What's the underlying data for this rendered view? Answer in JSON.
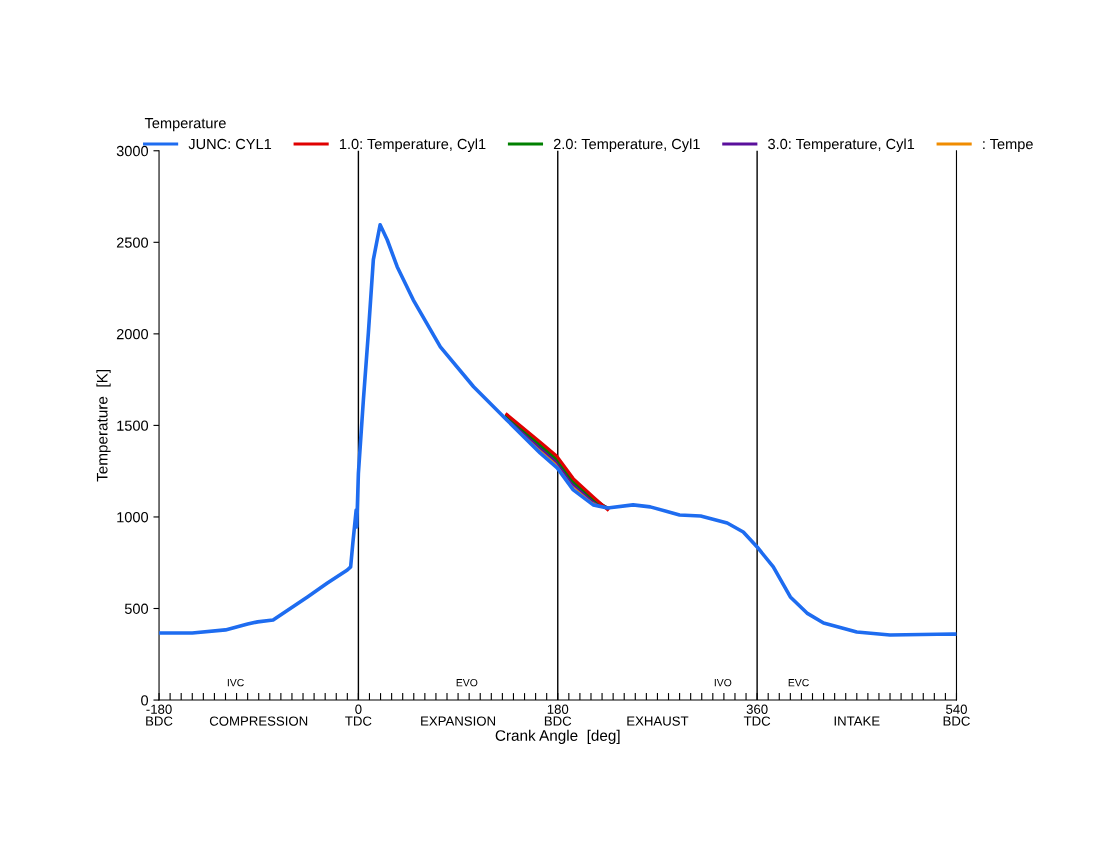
{
  "chart_data": {
    "type": "line",
    "xlabel": "Crank Angle  [deg]",
    "ylabel": "Temperature  [K]",
    "legend_title": "Temperature",
    "x": [
      -180,
      -150,
      -120,
      -100,
      -91,
      -77,
      -46,
      -28,
      -10,
      -7,
      -5,
      -2,
      -1.5,
      0,
      4.5,
      9,
      13.5,
      19.6,
      26,
      35,
      49.5,
      74,
      104,
      134,
      164,
      179.5,
      194,
      212,
      225,
      248,
      263.5,
      290,
      309,
      333,
      347.5,
      360,
      374.6,
      390,
      405,
      420,
      450,
      480,
      537,
      540
    ],
    "series": [
      {
        "name": "JUNC: CYL1",
        "color": "#1e6cf0",
        "values": [
          366,
          366,
          383,
          415,
          427,
          437,
          563,
          639,
          710,
          727,
          858,
          1038,
          945,
          1240,
          1640,
          2005,
          2405,
          2596,
          2514,
          2367,
          2186,
          1929,
          1711,
          1530,
          1350,
          1268,
          1148,
          1066,
          1049,
          1066,
          1055,
          1011,
          1005,
          967,
          918,
          836,
          727,
          563,
          475,
          421,
          372,
          355,
          361,
          360
        ]
      },
      {
        "name": "1.0: Temperature, Cyl1",
        "color": "#e00000",
        "values": [
          null,
          null,
          null,
          null,
          null,
          null,
          null,
          null,
          null,
          null,
          null,
          null,
          null,
          null,
          null,
          null,
          null,
          null,
          null,
          null,
          null,
          null,
          null,
          1560,
          1410,
          1330,
          1210,
          1110,
          1040,
          null,
          null,
          null,
          null,
          null,
          null,
          null,
          null,
          null,
          null,
          null,
          null,
          null,
          null,
          null
        ]
      },
      {
        "name": "2.0: Temperature, Cyl1",
        "color": "#008000",
        "values": [
          null,
          null,
          null,
          null,
          null,
          null,
          null,
          null,
          null,
          null,
          null,
          null,
          null,
          null,
          null,
          null,
          null,
          null,
          null,
          null,
          null,
          null,
          null,
          1555,
          1395,
          1315,
          1195,
          1100,
          1045,
          null,
          null,
          null,
          null,
          null,
          null,
          null,
          null,
          null,
          null,
          null,
          null,
          null,
          null,
          null
        ]
      },
      {
        "name": "3.0: Temperature, Cyl1",
        "color": "#5a0f9c",
        "values": [
          null,
          null,
          null,
          null,
          null,
          null,
          null,
          null,
          null,
          null,
          null,
          null,
          null,
          null,
          null,
          null,
          null,
          null,
          null,
          null,
          null,
          null,
          null,
          1550,
          1380,
          1300,
          1180,
          1090,
          1050,
          null,
          null,
          null,
          null,
          null,
          null,
          null,
          null,
          null,
          null,
          null,
          null,
          null,
          null,
          null
        ]
      },
      {
        "name": ": Tempe",
        "color": "#f08c00",
        "values": [
          null,
          null,
          null,
          null,
          null,
          null,
          null,
          null,
          null,
          null,
          null,
          null,
          null,
          null,
          null,
          null,
          null,
          null,
          null,
          null,
          null,
          null,
          null,
          1545,
          1370,
          1290,
          1170,
          1080,
          1050,
          null,
          null,
          null,
          null,
          null,
          null,
          null,
          null,
          null,
          null,
          null,
          null,
          null,
          null,
          null
        ]
      }
    ],
    "xlim": [
      -180,
      540
    ],
    "ylim": [
      0,
      3000
    ],
    "xticks": [
      {
        "value": -180,
        "label": "-180\nBDC"
      },
      {
        "value": -170,
        "label": null
      },
      {
        "value": -160,
        "label": null
      },
      {
        "value": -150,
        "label": null
      },
      {
        "value": -140,
        "label": null
      },
      {
        "value": -130,
        "label": null
      },
      {
        "value": -120,
        "label": null
      },
      {
        "value": -110,
        "label": null
      },
      {
        "value": -100,
        "label": null
      },
      {
        "value": -90,
        "label": "\nCOMPRESSION"
      },
      {
        "value": -80,
        "label": null
      },
      {
        "value": -70,
        "label": null
      },
      {
        "value": -60,
        "label": null
      },
      {
        "value": -50,
        "label": null
      },
      {
        "value": -40,
        "label": null
      },
      {
        "value": -30,
        "label": null
      },
      {
        "value": -20,
        "label": null
      },
      {
        "value": -10,
        "label": null
      },
      {
        "value": 0,
        "label": "0\nTDC"
      },
      {
        "value": 10,
        "label": null
      },
      {
        "value": 20,
        "label": null
      },
      {
        "value": 30,
        "label": null
      },
      {
        "value": 40,
        "label": null
      },
      {
        "value": 50,
        "label": null
      },
      {
        "value": 60,
        "label": null
      },
      {
        "value": 70,
        "label": null
      },
      {
        "value": 80,
        "label": null
      },
      {
        "value": 90,
        "label": "\nEXPANSION"
      },
      {
        "value": 100,
        "label": null
      },
      {
        "value": 110,
        "label": null
      },
      {
        "value": 120,
        "label": null
      },
      {
        "value": 130,
        "label": null
      },
      {
        "value": 140,
        "label": null
      },
      {
        "value": 150,
        "label": null
      },
      {
        "value": 160,
        "label": null
      },
      {
        "value": 170,
        "label": null
      },
      {
        "value": 180,
        "label": "180\nBDC"
      },
      {
        "value": 190,
        "label": null
      },
      {
        "value": 200,
        "label": null
      },
      {
        "value": 210,
        "label": null
      },
      {
        "value": 220,
        "label": null
      },
      {
        "value": 230,
        "label": null
      },
      {
        "value": 240,
        "label": null
      },
      {
        "value": 250,
        "label": null
      },
      {
        "value": 260,
        "label": null
      },
      {
        "value": 270,
        "label": "\nEXHAUST"
      },
      {
        "value": 280,
        "label": null
      },
      {
        "value": 290,
        "label": null
      },
      {
        "value": 300,
        "label": null
      },
      {
        "value": 310,
        "label": null
      },
      {
        "value": 320,
        "label": null
      },
      {
        "value": 330,
        "label": null
      },
      {
        "value": 340,
        "label": null
      },
      {
        "value": 350,
        "label": null
      },
      {
        "value": 360,
        "label": "360\nTDC"
      },
      {
        "value": 370,
        "label": null
      },
      {
        "value": 380,
        "label": null
      },
      {
        "value": 390,
        "label": null
      },
      {
        "value": 400,
        "label": null
      },
      {
        "value": 410,
        "label": null
      },
      {
        "value": 420,
        "label": null
      },
      {
        "value": 430,
        "label": null
      },
      {
        "value": 440,
        "label": null
      },
      {
        "value": 450,
        "label": "\nINTAKE"
      },
      {
        "value": 460,
        "label": null
      },
      {
        "value": 470,
        "label": null
      },
      {
        "value": 480,
        "label": null
      },
      {
        "value": 490,
        "label": null
      },
      {
        "value": 500,
        "label": null
      },
      {
        "value": 510,
        "label": null
      },
      {
        "value": 520,
        "label": null
      },
      {
        "value": 530,
        "label": null
      },
      {
        "value": 540,
        "label": "540\nBDC"
      }
    ],
    "yticks": [
      0,
      500,
      1000,
      1500,
      2000,
      2500,
      3000
    ],
    "ref_lines": [
      {
        "axis": "x",
        "value": 0,
        "color": "#000000"
      },
      {
        "axis": "x",
        "value": 180,
        "color": "#000000"
      },
      {
        "axis": "x",
        "value": 360,
        "color": "#000000"
      }
    ],
    "annotations": [
      "IVC",
      "EVO",
      "IVO",
      "EVC"
    ],
    "legend": "top left",
    "grid": false,
    "marker": "none",
    "line_style": "solid"
  }
}
